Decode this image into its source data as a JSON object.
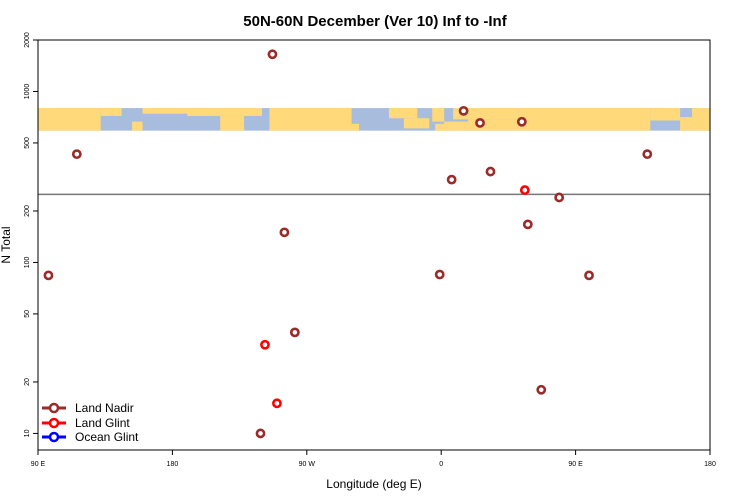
{
  "chart_data": {
    "type": "scatter",
    "title": "50N-60N December (Ver 10)   Inf to -Inf",
    "xlabel": "Longitude (deg E)",
    "ylabel": "N Total",
    "y_scale": "log",
    "xlim": [
      90,
      540
    ],
    "ylim": [
      8,
      2000
    ],
    "x_ticks": [
      {
        "value": 90,
        "label": "90 E"
      },
      {
        "value": 180,
        "label": "180"
      },
      {
        "value": 270,
        "label": "90 W"
      },
      {
        "value": 360,
        "label": "0"
      },
      {
        "value": 450,
        "label": "90 E"
      },
      {
        "value": 540,
        "label": "180"
      }
    ],
    "y_ticks": [
      {
        "value": 10,
        "label": "10"
      },
      {
        "value": 20,
        "label": "20"
      },
      {
        "value": 50,
        "label": "50"
      },
      {
        "value": 100,
        "label": "100"
      },
      {
        "value": 200,
        "label": "200"
      },
      {
        "value": 500,
        "label": "500"
      },
      {
        "value": 1000,
        "label": "1000"
      },
      {
        "value": 2000,
        "label": "2000"
      }
    ],
    "reference_line": {
      "y": 250
    },
    "map_band": {
      "y_top": 800,
      "y_bottom": 590
    },
    "series": [
      {
        "name": "Land Nadir",
        "color": "#9b2a2a",
        "points": [
          {
            "x": 97,
            "y": 84
          },
          {
            "x": 116,
            "y": 430
          },
          {
            "x": 247,
            "y": 1650
          },
          {
            "x": 239,
            "y": 10
          },
          {
            "x": 255,
            "y": 150
          },
          {
            "x": 262,
            "y": 39
          },
          {
            "x": 359,
            "y": 85
          },
          {
            "x": 367,
            "y": 305
          },
          {
            "x": 375,
            "y": 770
          },
          {
            "x": 386,
            "y": 655
          },
          {
            "x": 393,
            "y": 340
          },
          {
            "x": 414,
            "y": 665
          },
          {
            "x": 418,
            "y": 167
          },
          {
            "x": 427,
            "y": 18
          },
          {
            "x": 439,
            "y": 240
          },
          {
            "x": 459,
            "y": 84
          },
          {
            "x": 498,
            "y": 430
          }
        ]
      },
      {
        "name": "Land Glint",
        "color": "#ff0000",
        "points": [
          {
            "x": 242,
            "y": 33
          },
          {
            "x": 250,
            "y": 15
          },
          {
            "x": 416,
            "y": 265
          }
        ]
      },
      {
        "name": "Ocean Glint",
        "color": "#0000ff",
        "points": []
      }
    ],
    "legend": {
      "position": "bottom-left"
    }
  },
  "colors": {
    "land": "#ffd97a",
    "ocean": "#a8bddd",
    "axis": "#000000",
    "reference_line": "#777777"
  }
}
